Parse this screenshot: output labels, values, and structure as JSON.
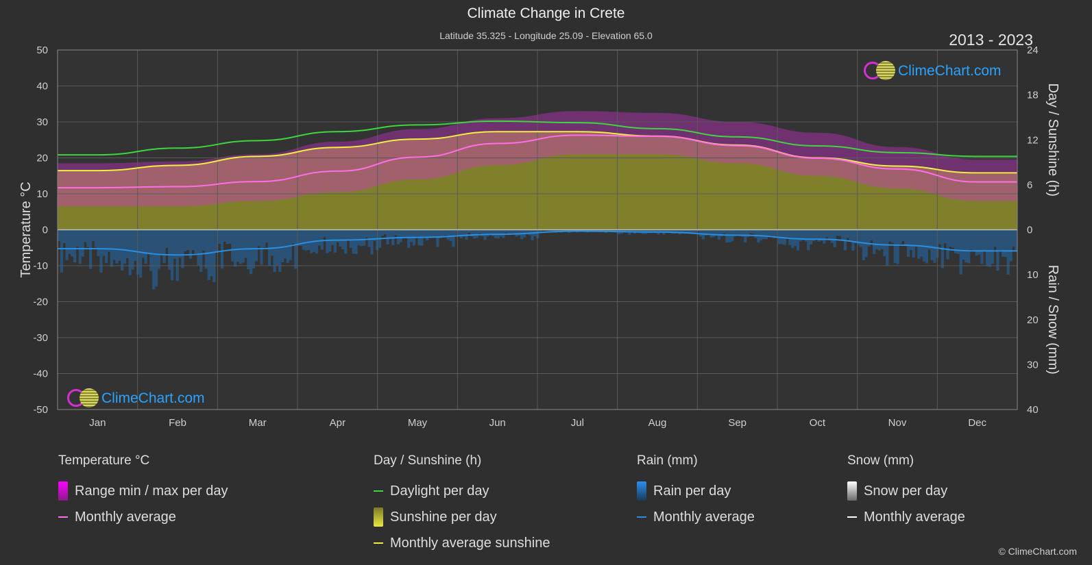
{
  "header": {
    "title": "Climate Change in Crete",
    "subtitle": "Latitude 35.325 - Longitude 25.09 - Elevation 65.0",
    "period": "2013 - 2023"
  },
  "logo_text": "ClimeChart.com",
  "copyright": "© ClimeChart.com",
  "colors": {
    "background": "#2f2f2f",
    "temp_range": "#d62fd6",
    "temp_avg": "#ff6ee6",
    "daylight": "#3ed63e",
    "sunshine_fill": "#8e8e2c",
    "sunshine_avg": "#f0f040",
    "rain": "#1f78c8",
    "rain_avg": "#2a8fe0",
    "snow_avg": "#ffffff"
  },
  "chart_data": {
    "type": "area",
    "categories": [
      "Jan",
      "Feb",
      "Mar",
      "Apr",
      "May",
      "Jun",
      "Jul",
      "Aug",
      "Sep",
      "Oct",
      "Nov",
      "Dec"
    ],
    "axes": {
      "left": {
        "label": "Temperature °C",
        "range": [
          -50,
          50
        ],
        "ticks": [
          50,
          40,
          30,
          20,
          10,
          0,
          -10,
          -20,
          -30,
          -40,
          -50
        ]
      },
      "right_top": {
        "label": "Day / Sunshine (h)",
        "range": [
          0,
          24
        ],
        "ticks": [
          24,
          18,
          12,
          6,
          0
        ]
      },
      "right_bottom": {
        "label": "Rain / Snow (mm)",
        "range": [
          0,
          40
        ],
        "ticks": [
          10,
          20,
          30,
          40
        ]
      }
    },
    "grid": true,
    "series": [
      {
        "name": "Daylight per day",
        "unit": "h",
        "values": [
          10.0,
          10.9,
          11.9,
          13.1,
          14.0,
          14.5,
          14.3,
          13.5,
          12.4,
          11.2,
          10.3,
          9.8
        ]
      },
      {
        "name": "Monthly average sunshine",
        "unit": "h",
        "values": [
          7.9,
          8.6,
          9.8,
          11.0,
          12.1,
          13.1,
          13.1,
          12.5,
          11.3,
          9.6,
          8.5,
          7.6
        ]
      },
      {
        "name": "Monthly average",
        "group": "Temperature °C",
        "unit": "°C",
        "values": [
          11.7,
          12.0,
          13.4,
          16.3,
          20.2,
          24.0,
          26.3,
          26.0,
          23.4,
          19.9,
          16.9,
          13.3
        ]
      },
      {
        "name": "Range max per day",
        "group": "Temperature °C",
        "unit": "°C",
        "values": [
          18.5,
          19.0,
          21.0,
          24.5,
          28.0,
          31.0,
          33.0,
          32.5,
          30.0,
          27.0,
          23.0,
          19.5
        ]
      },
      {
        "name": "Range min per day",
        "group": "Temperature °C",
        "unit": "°C",
        "values": [
          6.5,
          6.5,
          8.0,
          10.5,
          14.0,
          18.0,
          21.0,
          21.0,
          18.5,
          15.0,
          11.5,
          8.0
        ]
      },
      {
        "name": "Monthly average",
        "group": "Rain (mm)",
        "unit": "mm",
        "values": [
          4.2,
          5.6,
          4.2,
          2.3,
          1.7,
          1.0,
          0.3,
          0.5,
          1.2,
          2.1,
          3.4,
          4.7
        ]
      },
      {
        "name": "Monthly average",
        "group": "Snow (mm)",
        "unit": "mm",
        "values": [
          0,
          0,
          0,
          0,
          0,
          0,
          0,
          0,
          0,
          0,
          0,
          0
        ]
      }
    ]
  },
  "legend": {
    "temperature": {
      "title": "Temperature °C",
      "items": [
        "Range min / max per day",
        "Monthly average"
      ]
    },
    "sunshine": {
      "title": "Day / Sunshine (h)",
      "items": [
        "Daylight per day",
        "Sunshine per day",
        "Monthly average sunshine"
      ]
    },
    "rain": {
      "title": "Rain (mm)",
      "items": [
        "Rain per day",
        "Monthly average"
      ]
    },
    "snow": {
      "title": "Snow (mm)",
      "items": [
        "Snow per day",
        "Monthly average"
      ]
    }
  }
}
